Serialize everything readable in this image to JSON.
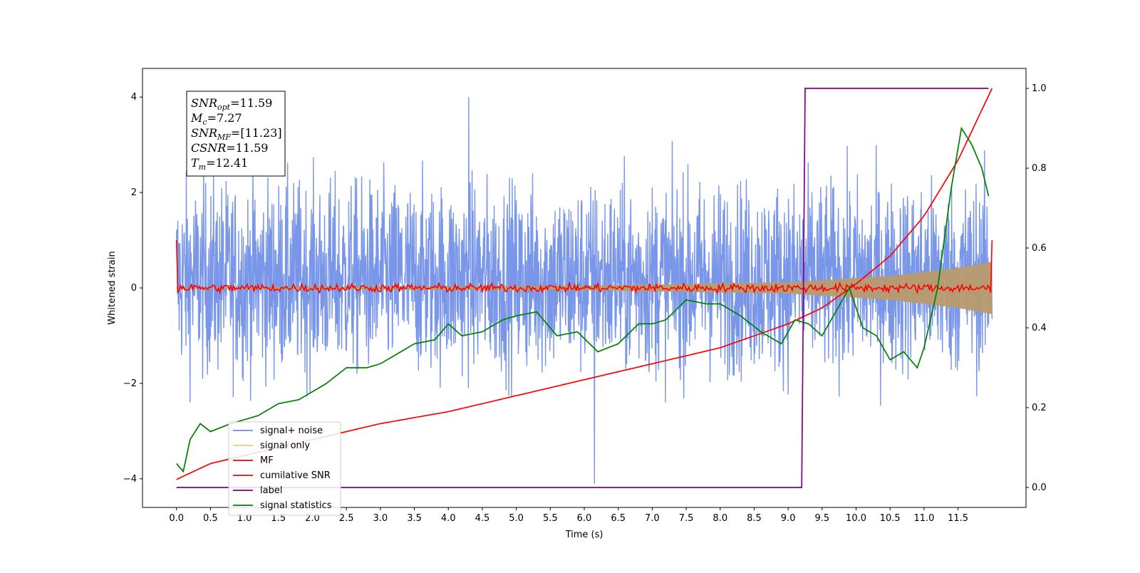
{
  "chart_data": {
    "type": "line",
    "xlabel": "Time (s)",
    "ylabel": "Whitened strain",
    "xlim": [
      -0.5,
      12.5
    ],
    "ylim": [
      -4.6,
      4.6
    ],
    "ylim_right": [
      -0.05,
      1.05
    ],
    "x_ticks": [
      "0.0",
      "0.5",
      "1.0",
      "1.5",
      "2.0",
      "2.5",
      "3.0",
      "3.5",
      "4.0",
      "4.5",
      "5.0",
      "5.5",
      "6.0",
      "6.5",
      "7.0",
      "7.5",
      "8.0",
      "8.5",
      "9.0",
      "9.5",
      "10.0",
      "10.5",
      "11.0",
      "11.5"
    ],
    "y_ticks_left": [
      "4",
      "2",
      "0",
      "−2",
      "−4"
    ],
    "y_ticks_right": [
      "1.0",
      "0.8",
      "0.6",
      "0.4",
      "0.2",
      "0.0"
    ],
    "grid": false,
    "legend_placement": "lower-left",
    "info_box": [
      {
        "sym": "SNR",
        "sub": "opt",
        "value": "=11.59"
      },
      {
        "sym": "M",
        "sub": "c",
        "value": "=7.27"
      },
      {
        "sym": "SNR",
        "sub": "MF",
        "value": "=[11.23]"
      },
      {
        "sym": "CSNR",
        "sub": "",
        "value": "=11.59"
      },
      {
        "sym": "T",
        "sub": "m",
        "value": "=12.41"
      }
    ],
    "series": [
      {
        "name": "signal+ noise",
        "color": "#6a8be6",
        "axis": "left",
        "t_range": [
          0.0,
          12.0
        ],
        "noise_sigma": 1.0,
        "offset": 0.2,
        "x_max_spike": [
          4.3,
          4.0
        ],
        "x_min_spike": [
          6.15,
          -4.1
        ]
      },
      {
        "name": "signal only",
        "color": "#f5c97a",
        "axis": "left",
        "envelope": {
          "x": [
            0.0,
            6.0,
            9.0,
            10.5,
            11.5,
            12.0
          ],
          "amplitude": [
            0.02,
            0.05,
            0.12,
            0.25,
            0.42,
            0.55
          ]
        }
      },
      {
        "name": "MF",
        "color": "#ff0000",
        "axis": "left",
        "t_range": [
          0.0,
          12.0
        ],
        "start_value": 1.0,
        "end_value": 1.0,
        "jitter": 0.1
      },
      {
        "name": "cumilative SNR",
        "color": "#ff0000",
        "axis": "right",
        "x": [
          0.0,
          0.5,
          1.0,
          2.0,
          3.0,
          4.0,
          5.0,
          6.0,
          7.0,
          8.0,
          9.0,
          9.5,
          10.0,
          10.5,
          11.0,
          11.5,
          12.0
        ],
        "y": [
          0.02,
          0.06,
          0.08,
          0.12,
          0.16,
          0.19,
          0.23,
          0.27,
          0.31,
          0.35,
          0.41,
          0.45,
          0.51,
          0.58,
          0.68,
          0.82,
          1.0
        ]
      },
      {
        "name": "label",
        "color": "#800080",
        "axis": "right",
        "x": [
          0.0,
          9.2,
          9.25,
          11.95
        ],
        "y": [
          0.0,
          0.0,
          1.0,
          1.0
        ]
      },
      {
        "name": "signal statistics",
        "color": "#008000",
        "axis": "right",
        "x": [
          0.0,
          0.1,
          0.2,
          0.35,
          0.5,
          0.8,
          1.0,
          1.2,
          1.5,
          1.8,
          2.0,
          2.2,
          2.5,
          2.8,
          3.0,
          3.3,
          3.5,
          3.8,
          4.0,
          4.2,
          4.5,
          4.8,
          5.0,
          5.3,
          5.6,
          5.9,
          6.2,
          6.5,
          6.8,
          7.0,
          7.2,
          7.5,
          7.8,
          8.0,
          8.3,
          8.6,
          8.9,
          9.1,
          9.3,
          9.5,
          9.9,
          10.1,
          10.3,
          10.5,
          10.7,
          10.9,
          11.0,
          11.2,
          11.4,
          11.55,
          11.7,
          11.85,
          11.95
        ],
        "y": [
          0.06,
          0.04,
          0.12,
          0.16,
          0.14,
          0.16,
          0.17,
          0.18,
          0.21,
          0.22,
          0.24,
          0.26,
          0.3,
          0.3,
          0.31,
          0.34,
          0.36,
          0.37,
          0.41,
          0.38,
          0.39,
          0.42,
          0.43,
          0.44,
          0.38,
          0.39,
          0.34,
          0.36,
          0.41,
          0.41,
          0.42,
          0.47,
          0.46,
          0.46,
          0.43,
          0.39,
          0.36,
          0.42,
          0.41,
          0.38,
          0.5,
          0.4,
          0.38,
          0.32,
          0.34,
          0.3,
          0.35,
          0.5,
          0.75,
          0.9,
          0.86,
          0.8,
          0.73
        ]
      }
    ]
  }
}
